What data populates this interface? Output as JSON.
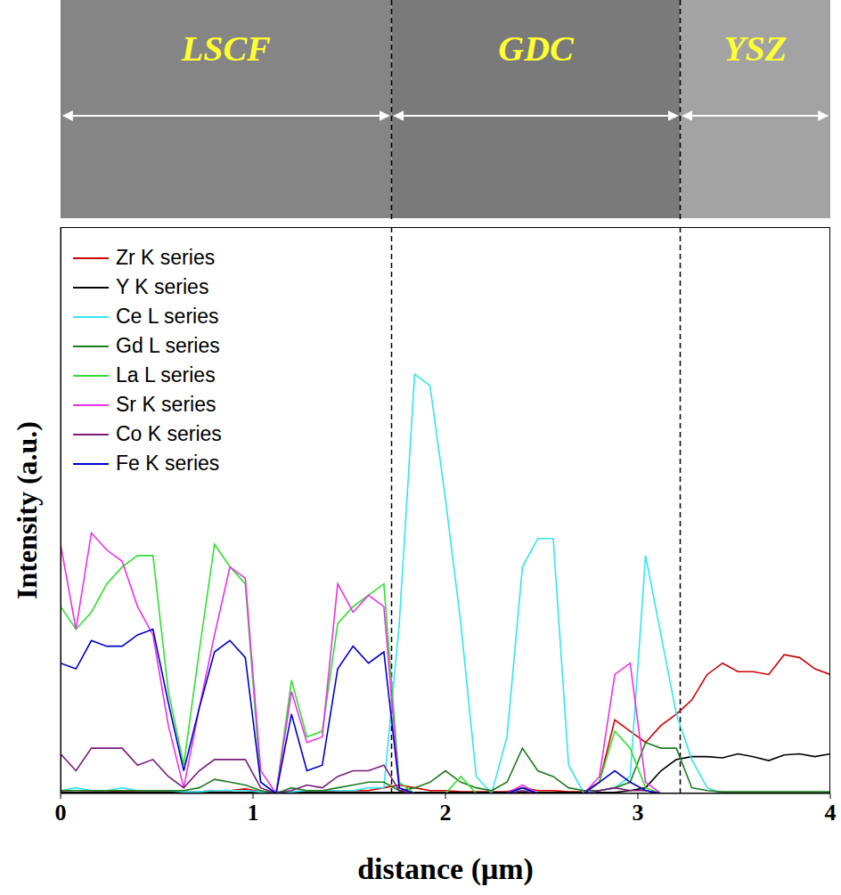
{
  "chart_data": {
    "type": "line",
    "x_label": "distance (μm)",
    "y_label": "Intensity (a.u.)",
    "xlim": [
      0,
      4
    ],
    "xticks": [
      0,
      1,
      2,
      3,
      4
    ],
    "ylim": [
      0,
      100
    ],
    "tick_labels": "x",
    "grid": false,
    "legend": "top-left",
    "regions": [
      "LSCF",
      "GDC",
      "YSZ"
    ],
    "boundaries": [
      1.72,
      3.22
    ],
    "x": [
      0,
      0.08,
      0.16,
      0.24,
      0.32,
      0.4,
      0.48,
      0.56,
      0.64,
      0.72,
      0.8,
      0.88,
      0.96,
      1.04,
      1.12,
      1.2,
      1.28,
      1.36,
      1.44,
      1.52,
      1.6,
      1.68,
      1.76,
      1.84,
      1.92,
      2.0,
      2.08,
      2.16,
      2.24,
      2.32,
      2.4,
      2.48,
      2.56,
      2.64,
      2.72,
      2.8,
      2.88,
      2.96,
      3.04,
      3.12,
      3.2,
      3.28,
      3.36,
      3.44,
      3.52,
      3.6,
      3.68,
      3.76,
      3.84,
      3.92,
      4.0
    ],
    "series": [
      {
        "name": "Zr K series",
        "color": "#cc0000",
        "values": [
          0.3,
          0.2,
          0.3,
          0.5,
          0.3,
          0.3,
          0.3,
          0.3,
          0.3,
          0.3,
          0.5,
          0.5,
          0.8,
          0.3,
          0.3,
          0.3,
          0.3,
          0.3,
          0.5,
          0.5,
          0.5,
          1,
          1.5,
          1,
          0.5,
          0.5,
          0.3,
          0.3,
          0.3,
          0.3,
          1,
          0.5,
          0.5,
          0.3,
          0.3,
          2,
          13,
          11,
          9,
          12,
          14,
          16.5,
          21,
          23,
          21.5,
          21.5,
          21,
          24.5,
          24,
          22,
          21
        ]
      },
      {
        "name": "Y K series",
        "color": "#000000",
        "values": [
          0.2,
          0.2,
          0.2,
          0.2,
          0.2,
          0.2,
          0.2,
          0.2,
          0.2,
          0.2,
          0.2,
          0.2,
          0.2,
          0.2,
          0.2,
          0.2,
          0.2,
          0.2,
          0.2,
          0.2,
          0.2,
          0.2,
          0.2,
          0.2,
          0.2,
          0.2,
          0.2,
          0.2,
          0.2,
          0.2,
          0.2,
          0.2,
          0.2,
          0.2,
          0.2,
          0.2,
          0.2,
          0.5,
          1,
          4,
          6,
          6.5,
          6.5,
          6.3,
          7,
          6.5,
          5.8,
          6.8,
          7,
          6.5,
          7
        ]
      },
      {
        "name": "Ce L series",
        "color": "#33e5f0",
        "values": [
          0.5,
          1,
          0.5,
          0.5,
          1,
          0.5,
          0.5,
          0.5,
          0.3,
          0.3,
          0.5,
          0.5,
          0.5,
          0.3,
          0.3,
          0.3,
          0.5,
          0.5,
          0.5,
          0.5,
          1,
          1,
          30,
          74,
          72,
          52,
          30,
          3,
          0,
          10,
          40,
          45,
          45,
          5,
          0,
          0.5,
          1,
          3,
          42,
          28,
          14,
          6,
          1,
          0,
          0,
          0,
          0,
          0,
          0,
          0,
          0
        ]
      },
      {
        "name": "Gd L series",
        "color": "#1e7b1e",
        "values": [
          0.5,
          0.5,
          0.5,
          0.5,
          0.5,
          0.5,
          0.5,
          0.5,
          0.5,
          1,
          2.5,
          2,
          1.5,
          0.5,
          0,
          1,
          0.5,
          0.5,
          1,
          1.5,
          2,
          2,
          0.5,
          1,
          2,
          4,
          2,
          1,
          0.5,
          2,
          8,
          4,
          3,
          1,
          0.5,
          0.5,
          1,
          2,
          9,
          8,
          8,
          1,
          0.5,
          0.3,
          0.3,
          0.3,
          0.3,
          0.3,
          0.3,
          0.3,
          0.3
        ]
      },
      {
        "name": "La L series",
        "color": "#33dd33",
        "values": [
          33,
          29,
          32,
          37,
          40,
          42,
          42,
          18,
          5,
          25,
          44,
          40,
          37,
          2,
          0,
          20,
          10,
          11,
          30,
          33,
          35,
          37,
          2,
          0,
          0,
          0,
          3,
          0,
          0,
          0,
          1,
          0,
          0,
          0,
          0,
          2,
          11,
          8,
          1,
          0,
          0,
          0,
          0,
          0,
          0,
          0,
          0,
          0,
          0,
          0,
          0
        ]
      },
      {
        "name": "Sr K series",
        "color": "#e633e6",
        "values": [
          44,
          29,
          46,
          43,
          41,
          33,
          28,
          12,
          1,
          15,
          28,
          40,
          38,
          4,
          0,
          18,
          9,
          10,
          37,
          32,
          35,
          33,
          1,
          0,
          0,
          0,
          0,
          0,
          0,
          0,
          1.5,
          0,
          0,
          0,
          0,
          3,
          21,
          23,
          2,
          0,
          0,
          0,
          0,
          0,
          0,
          0,
          0,
          0,
          0,
          0,
          0
        ]
      },
      {
        "name": "Co K series",
        "color": "#7a1a7a",
        "values": [
          7,
          4,
          8,
          8,
          8,
          5,
          6,
          3,
          1,
          4,
          6,
          6,
          6,
          1,
          0,
          0.5,
          1.5,
          1,
          3,
          4,
          4,
          5,
          0.5,
          0,
          0,
          0,
          0,
          0,
          0,
          0,
          0.5,
          0,
          0,
          0,
          0,
          0.5,
          1,
          0.5,
          0.5,
          0,
          0,
          0,
          0,
          0,
          0,
          0,
          0,
          0,
          0,
          0,
          0
        ]
      },
      {
        "name": "Fe K series",
        "color": "#0000cc",
        "values": [
          23,
          22,
          27,
          26,
          26,
          28,
          29,
          16,
          4,
          15,
          25,
          27,
          24,
          2,
          0,
          14,
          4,
          5,
          22,
          26,
          23,
          25,
          1,
          0,
          0,
          0,
          0,
          0,
          0,
          0,
          1,
          0,
          0,
          0,
          0,
          2,
          4,
          2,
          0.5,
          0,
          0,
          0,
          0,
          0,
          0,
          0,
          0,
          0,
          0,
          0,
          0
        ]
      }
    ]
  }
}
